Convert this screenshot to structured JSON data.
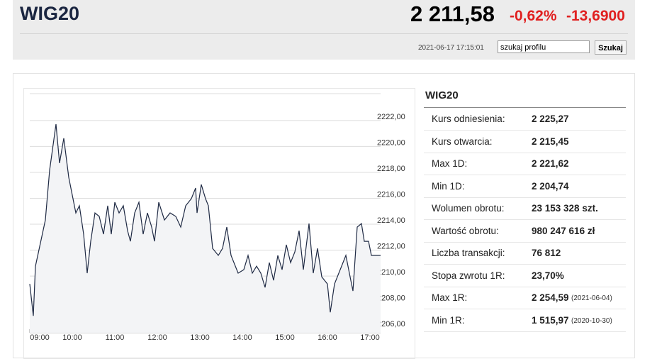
{
  "header": {
    "title": "WIG20",
    "price": "2 211,58",
    "change_pct": "-0,62%",
    "change_abs": "-13,6900",
    "timestamp": "2021-06-17 17:15:01"
  },
  "search": {
    "placeholder": "szukaj profilu",
    "button": "Szukaj"
  },
  "chart_data": {
    "type": "line",
    "color": "#1f2a44",
    "fill": "#f3f4f6",
    "x": [
      "09:00",
      "09:05",
      "09:08",
      "09:22",
      "09:28",
      "09:37",
      "09:42",
      "09:48",
      "09:55",
      "10:05",
      "10:10",
      "10:16",
      "10:21",
      "10:26",
      "10:32",
      "10:38",
      "10:44",
      "10:50",
      "10:55",
      "11:00",
      "11:06",
      "11:12",
      "11:18",
      "11:22",
      "11:28",
      "11:34",
      "11:40",
      "11:46",
      "11:52",
      "11:56",
      "12:02",
      "12:10",
      "12:18",
      "12:26",
      "12:33",
      "12:40",
      "12:48",
      "12:54",
      "12:56",
      "13:02",
      "13:08",
      "13:12",
      "13:18",
      "13:26",
      "13:32",
      "13:38",
      "13:44",
      "13:54",
      "14:02",
      "14:08",
      "14:14",
      "14:20",
      "14:26",
      "14:32",
      "14:38",
      "14:44",
      "14:50",
      "14:56",
      "15:02",
      "15:08",
      "15:14",
      "15:20",
      "15:26",
      "15:34",
      "15:40",
      "15:46",
      "15:52",
      "16:00",
      "16:04",
      "16:10",
      "16:18",
      "16:26",
      "16:32",
      "16:36",
      "16:42",
      "16:48",
      "16:52",
      "16:58",
      "17:02",
      "17:15"
    ],
    "series": [
      {
        "name": "WIG20",
        "values": [
          2209.12,
          2206.66,
          2210.49,
          2214.05,
          2217.89,
          2221.45,
          2218.44,
          2220.36,
          2217.34,
          2214.6,
          2215.15,
          2212.96,
          2209.95,
          2212.41,
          2214.6,
          2214.33,
          2212.96,
          2215.15,
          2212.96,
          2215.42,
          2214.6,
          2215.15,
          2213.23,
          2212.41,
          2214.6,
          2215.42,
          2212.96,
          2214.6,
          2213.51,
          2212.41,
          2215.42,
          2214.05,
          2214.6,
          2214.33,
          2213.51,
          2215.15,
          2215.7,
          2216.52,
          2214.6,
          2216.79,
          2215.7,
          2215.15,
          2211.86,
          2211.32,
          2211.86,
          2213.51,
          2211.32,
          2209.95,
          2210.22,
          2211.32,
          2209.95,
          2210.49,
          2209.95,
          2208.85,
          2210.77,
          2209.4,
          2211.32,
          2210.22,
          2212.14,
          2210.77,
          2211.59,
          2213.23,
          2210.22,
          2213.78,
          2209.95,
          2211.86,
          2209.67,
          2209.12,
          2206.93,
          2209.12,
          2210.22,
          2211.32,
          2209.67,
          2208.58,
          2213.51,
          2213.78,
          2212.41,
          2212.41,
          2211.32,
          2211.32
        ]
      }
    ],
    "xlim": [
      "09:00",
      "17:15"
    ],
    "xticks": [
      "09:00",
      "10:00",
      "11:00",
      "12:00",
      "13:00",
      "14:00",
      "15:00",
      "16:00",
      "17:00"
    ],
    "ylim": [
      2205.3,
      2223.8
    ],
    "yticks": [
      {
        "value": 2206,
        "label": "2206,00"
      },
      {
        "value": 2208,
        "label": "2208,00"
      },
      {
        "value": 2210,
        "label": "2210,00"
      },
      {
        "value": 2212,
        "label": "2212,00"
      },
      {
        "value": 2214,
        "label": "2214,00"
      },
      {
        "value": 2216,
        "label": "2216,00"
      },
      {
        "value": 2218,
        "label": "2218,00"
      },
      {
        "value": 2220,
        "label": "2220,00"
      },
      {
        "value": 2222,
        "label": "2222,00"
      }
    ],
    "grid": true
  },
  "stats": {
    "title": "WIG20",
    "rows": [
      {
        "label": "Kurs odniesienia:",
        "value": "2 225,27"
      },
      {
        "label": "Kurs otwarcia:",
        "value": "2 215,45"
      },
      {
        "label": "Max 1D:",
        "value": "2 221,62"
      },
      {
        "label": "Min 1D:",
        "value": "2 204,74"
      },
      {
        "label": "Wolumen obrotu:",
        "value": "23 153 328 szt."
      },
      {
        "label": "Wartość obrotu:",
        "value": "980 247 616 zł"
      },
      {
        "label": "Liczba transakcji:",
        "value": "76 812"
      },
      {
        "label": "Stopa zwrotu 1R:",
        "value": "23,70%"
      },
      {
        "label": "Max 1R:",
        "value": "2 254,59",
        "date": "(2021-06-04)"
      },
      {
        "label": "Min 1R:",
        "value": "1 515,97",
        "date": "(2020-10-30)"
      }
    ]
  }
}
